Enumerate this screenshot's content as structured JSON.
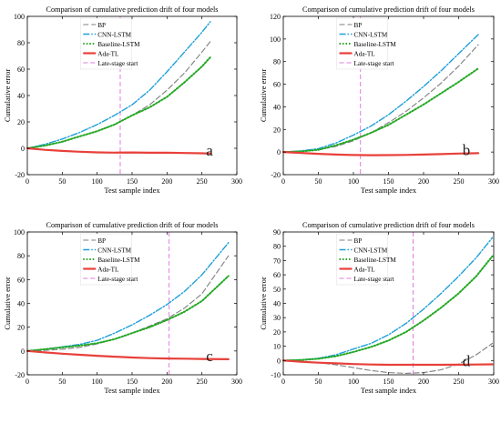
{
  "colors": {
    "bp": "#7f7f7f",
    "cnn_lstm": "#1f9fd8",
    "baseline_lstm": "#22a822",
    "ada_tl": "#e8403a",
    "late_stage": "#e27ae2",
    "axis": "#000000"
  },
  "legend_labels": [
    "BP",
    "CNN-LSTM",
    "Baseline-LSTM",
    "Ada-TL",
    "Late-stage start"
  ],
  "chart_data": [
    {
      "panel_id": "a",
      "type": "line",
      "title": "Comparison of cumulative prediction drift of four models",
      "xlabel": "Test sample index",
      "ylabel": "Cumulative error",
      "xlim": [
        0,
        300
      ],
      "ylim": [
        -20,
        100
      ],
      "xticks": [
        0,
        50,
        100,
        150,
        200,
        250,
        300
      ],
      "yticks": [
        -20,
        0,
        20,
        40,
        60,
        80,
        100
      ],
      "legend_position": "top-left",
      "grid": false,
      "panel_label": "a",
      "late_stage_start": 133,
      "x_end": 262,
      "series": [
        {
          "name": "BP",
          "x": [
            0,
            25,
            50,
            75,
            100,
            125,
            150,
            175,
            200,
            225,
            250,
            262
          ],
          "y": [
            0,
            2,
            5,
            9,
            13,
            18,
            25,
            33,
            44,
            57,
            73,
            81
          ]
        },
        {
          "name": "CNN-LSTM",
          "x": [
            0,
            25,
            50,
            75,
            100,
            125,
            150,
            175,
            200,
            225,
            250,
            262
          ],
          "y": [
            0,
            3,
            7,
            12,
            18,
            25,
            33,
            44,
            58,
            73,
            88,
            96
          ]
        },
        {
          "name": "Baseline-LSTM",
          "x": [
            0,
            25,
            50,
            75,
            100,
            125,
            150,
            175,
            200,
            225,
            250,
            262
          ],
          "y": [
            0,
            2,
            5,
            9,
            13,
            18,
            25,
            31,
            39,
            50,
            62,
            69
          ]
        },
        {
          "name": "Ada-TL",
          "x": [
            0,
            25,
            50,
            75,
            100,
            125,
            150,
            175,
            200,
            225,
            250,
            262
          ],
          "y": [
            0,
            -1.2,
            -2,
            -2.6,
            -3.1,
            -3.3,
            -3.2,
            -3.4,
            -3.4,
            -3.6,
            -3.8,
            -4
          ]
        }
      ]
    },
    {
      "panel_id": "b",
      "type": "line",
      "title": "Comparison of cumulative prediction drift of four models",
      "xlabel": "Test sample index",
      "ylabel": "Cumulative error",
      "xlim": [
        0,
        300
      ],
      "ylim": [
        -20,
        120
      ],
      "xticks": [
        0,
        50,
        100,
        150,
        200,
        250,
        300
      ],
      "yticks": [
        -20,
        0,
        20,
        40,
        60,
        80,
        100,
        120
      ],
      "legend_position": "top-left",
      "grid": false,
      "panel_label": "b",
      "late_stage_start": 110,
      "x_end": 278,
      "series": [
        {
          "name": "BP",
          "x": [
            0,
            25,
            50,
            75,
            100,
            125,
            150,
            175,
            200,
            225,
            250,
            278
          ],
          "y": [
            0,
            1,
            2,
            5,
            10,
            17,
            26,
            36,
            48,
            61,
            76,
            95
          ]
        },
        {
          "name": "CNN-LSTM",
          "x": [
            0,
            25,
            50,
            75,
            100,
            125,
            150,
            175,
            200,
            225,
            250,
            278
          ],
          "y": [
            0,
            1,
            3,
            8,
            15,
            23,
            33,
            45,
            58,
            72,
            87,
            104
          ]
        },
        {
          "name": "Baseline-LSTM",
          "x": [
            0,
            25,
            50,
            75,
            100,
            125,
            150,
            175,
            200,
            225,
            250,
            278
          ],
          "y": [
            0,
            0.5,
            2,
            6,
            11,
            17,
            24,
            33,
            42,
            52,
            62,
            74
          ]
        },
        {
          "name": "Ada-TL",
          "x": [
            0,
            25,
            50,
            75,
            100,
            125,
            150,
            175,
            200,
            225,
            250,
            278
          ],
          "y": [
            0,
            -0.8,
            -1.6,
            -2.2,
            -2.6,
            -2.8,
            -2.7,
            -2.5,
            -2.2,
            -1.8,
            -1.3,
            -1
          ]
        }
      ]
    },
    {
      "panel_id": "c",
      "type": "line",
      "title": "Comparison of cumulative prediction drift of four models",
      "xlabel": "Test sample index",
      "ylabel": "Cumulative error",
      "xlim": [
        0,
        300
      ],
      "ylim": [
        -20,
        100
      ],
      "xticks": [
        0,
        50,
        100,
        150,
        200,
        250,
        300
      ],
      "yticks": [
        -20,
        0,
        20,
        40,
        60,
        80,
        100
      ],
      "legend_position": "top-left",
      "grid": false,
      "panel_label": "c",
      "late_stage_start": 203,
      "x_end": 288,
      "series": [
        {
          "name": "BP",
          "x": [
            0,
            25,
            50,
            75,
            100,
            125,
            150,
            175,
            200,
            225,
            250,
            288
          ],
          "y": [
            0,
            0.5,
            1.5,
            3,
            6,
            10,
            15,
            21,
            27,
            36,
            48,
            80
          ]
        },
        {
          "name": "CNN-LSTM",
          "x": [
            0,
            25,
            50,
            75,
            100,
            125,
            150,
            175,
            200,
            225,
            250,
            288
          ],
          "y": [
            0,
            1.5,
            3.5,
            5.5,
            9,
            15,
            22,
            30,
            39,
            50,
            64,
            91
          ]
        },
        {
          "name": "Baseline-LSTM",
          "x": [
            0,
            25,
            50,
            75,
            100,
            125,
            150,
            175,
            200,
            225,
            250,
            288
          ],
          "y": [
            0,
            1.5,
            3,
            4.5,
            6.5,
            10,
            15,
            20,
            26,
            33,
            42,
            63
          ]
        },
        {
          "name": "Ada-TL",
          "x": [
            0,
            25,
            50,
            75,
            100,
            125,
            150,
            175,
            200,
            225,
            250,
            288
          ],
          "y": [
            0,
            -1.2,
            -2.3,
            -3.2,
            -4,
            -4.8,
            -5.5,
            -6,
            -6.3,
            -6.5,
            -6.7,
            -6.9
          ]
        }
      ]
    },
    {
      "panel_id": "d",
      "type": "line",
      "title": "Comparison of cumulative prediction drift of four models",
      "xlabel": "Test sample index",
      "ylabel": "Cumulative error",
      "xlim": [
        0,
        300
      ],
      "ylim": [
        -10,
        90
      ],
      "xticks": [
        0,
        50,
        100,
        150,
        200,
        250,
        300
      ],
      "yticks": [
        -10,
        0,
        10,
        20,
        30,
        40,
        50,
        60,
        70,
        80,
        90
      ],
      "legend_position": "top-left",
      "grid": false,
      "panel_label": "d",
      "late_stage_start": 185,
      "x_end": 298,
      "series": [
        {
          "name": "BP",
          "x": [
            0,
            25,
            50,
            75,
            100,
            125,
            150,
            175,
            200,
            225,
            250,
            275,
            298
          ],
          "y": [
            0,
            -0.5,
            -1.5,
            -3,
            -5,
            -7,
            -8.5,
            -9,
            -8.5,
            -6.5,
            -2.5,
            4,
            12
          ]
        },
        {
          "name": "CNN-LSTM",
          "x": [
            0,
            25,
            50,
            75,
            100,
            125,
            150,
            175,
            200,
            225,
            250,
            275,
            298
          ],
          "y": [
            0,
            0.5,
            1.5,
            4,
            8,
            12,
            18,
            26,
            36,
            47,
            59,
            72,
            86
          ]
        },
        {
          "name": "Baseline-LSTM",
          "x": [
            0,
            25,
            50,
            75,
            100,
            125,
            150,
            175,
            200,
            225,
            250,
            275,
            298
          ],
          "y": [
            0,
            0.4,
            1.2,
            3,
            6,
            9.5,
            14,
            20,
            28,
            37,
            47,
            59,
            73
          ]
        },
        {
          "name": "Ada-TL",
          "x": [
            0,
            25,
            50,
            75,
            100,
            125,
            150,
            175,
            200,
            225,
            250,
            275,
            298
          ],
          "y": [
            0,
            -0.8,
            -1.5,
            -2,
            -2.5,
            -2.8,
            -3,
            -3,
            -3,
            -3,
            -2.9,
            -2.8,
            -2.7
          ]
        }
      ]
    }
  ]
}
